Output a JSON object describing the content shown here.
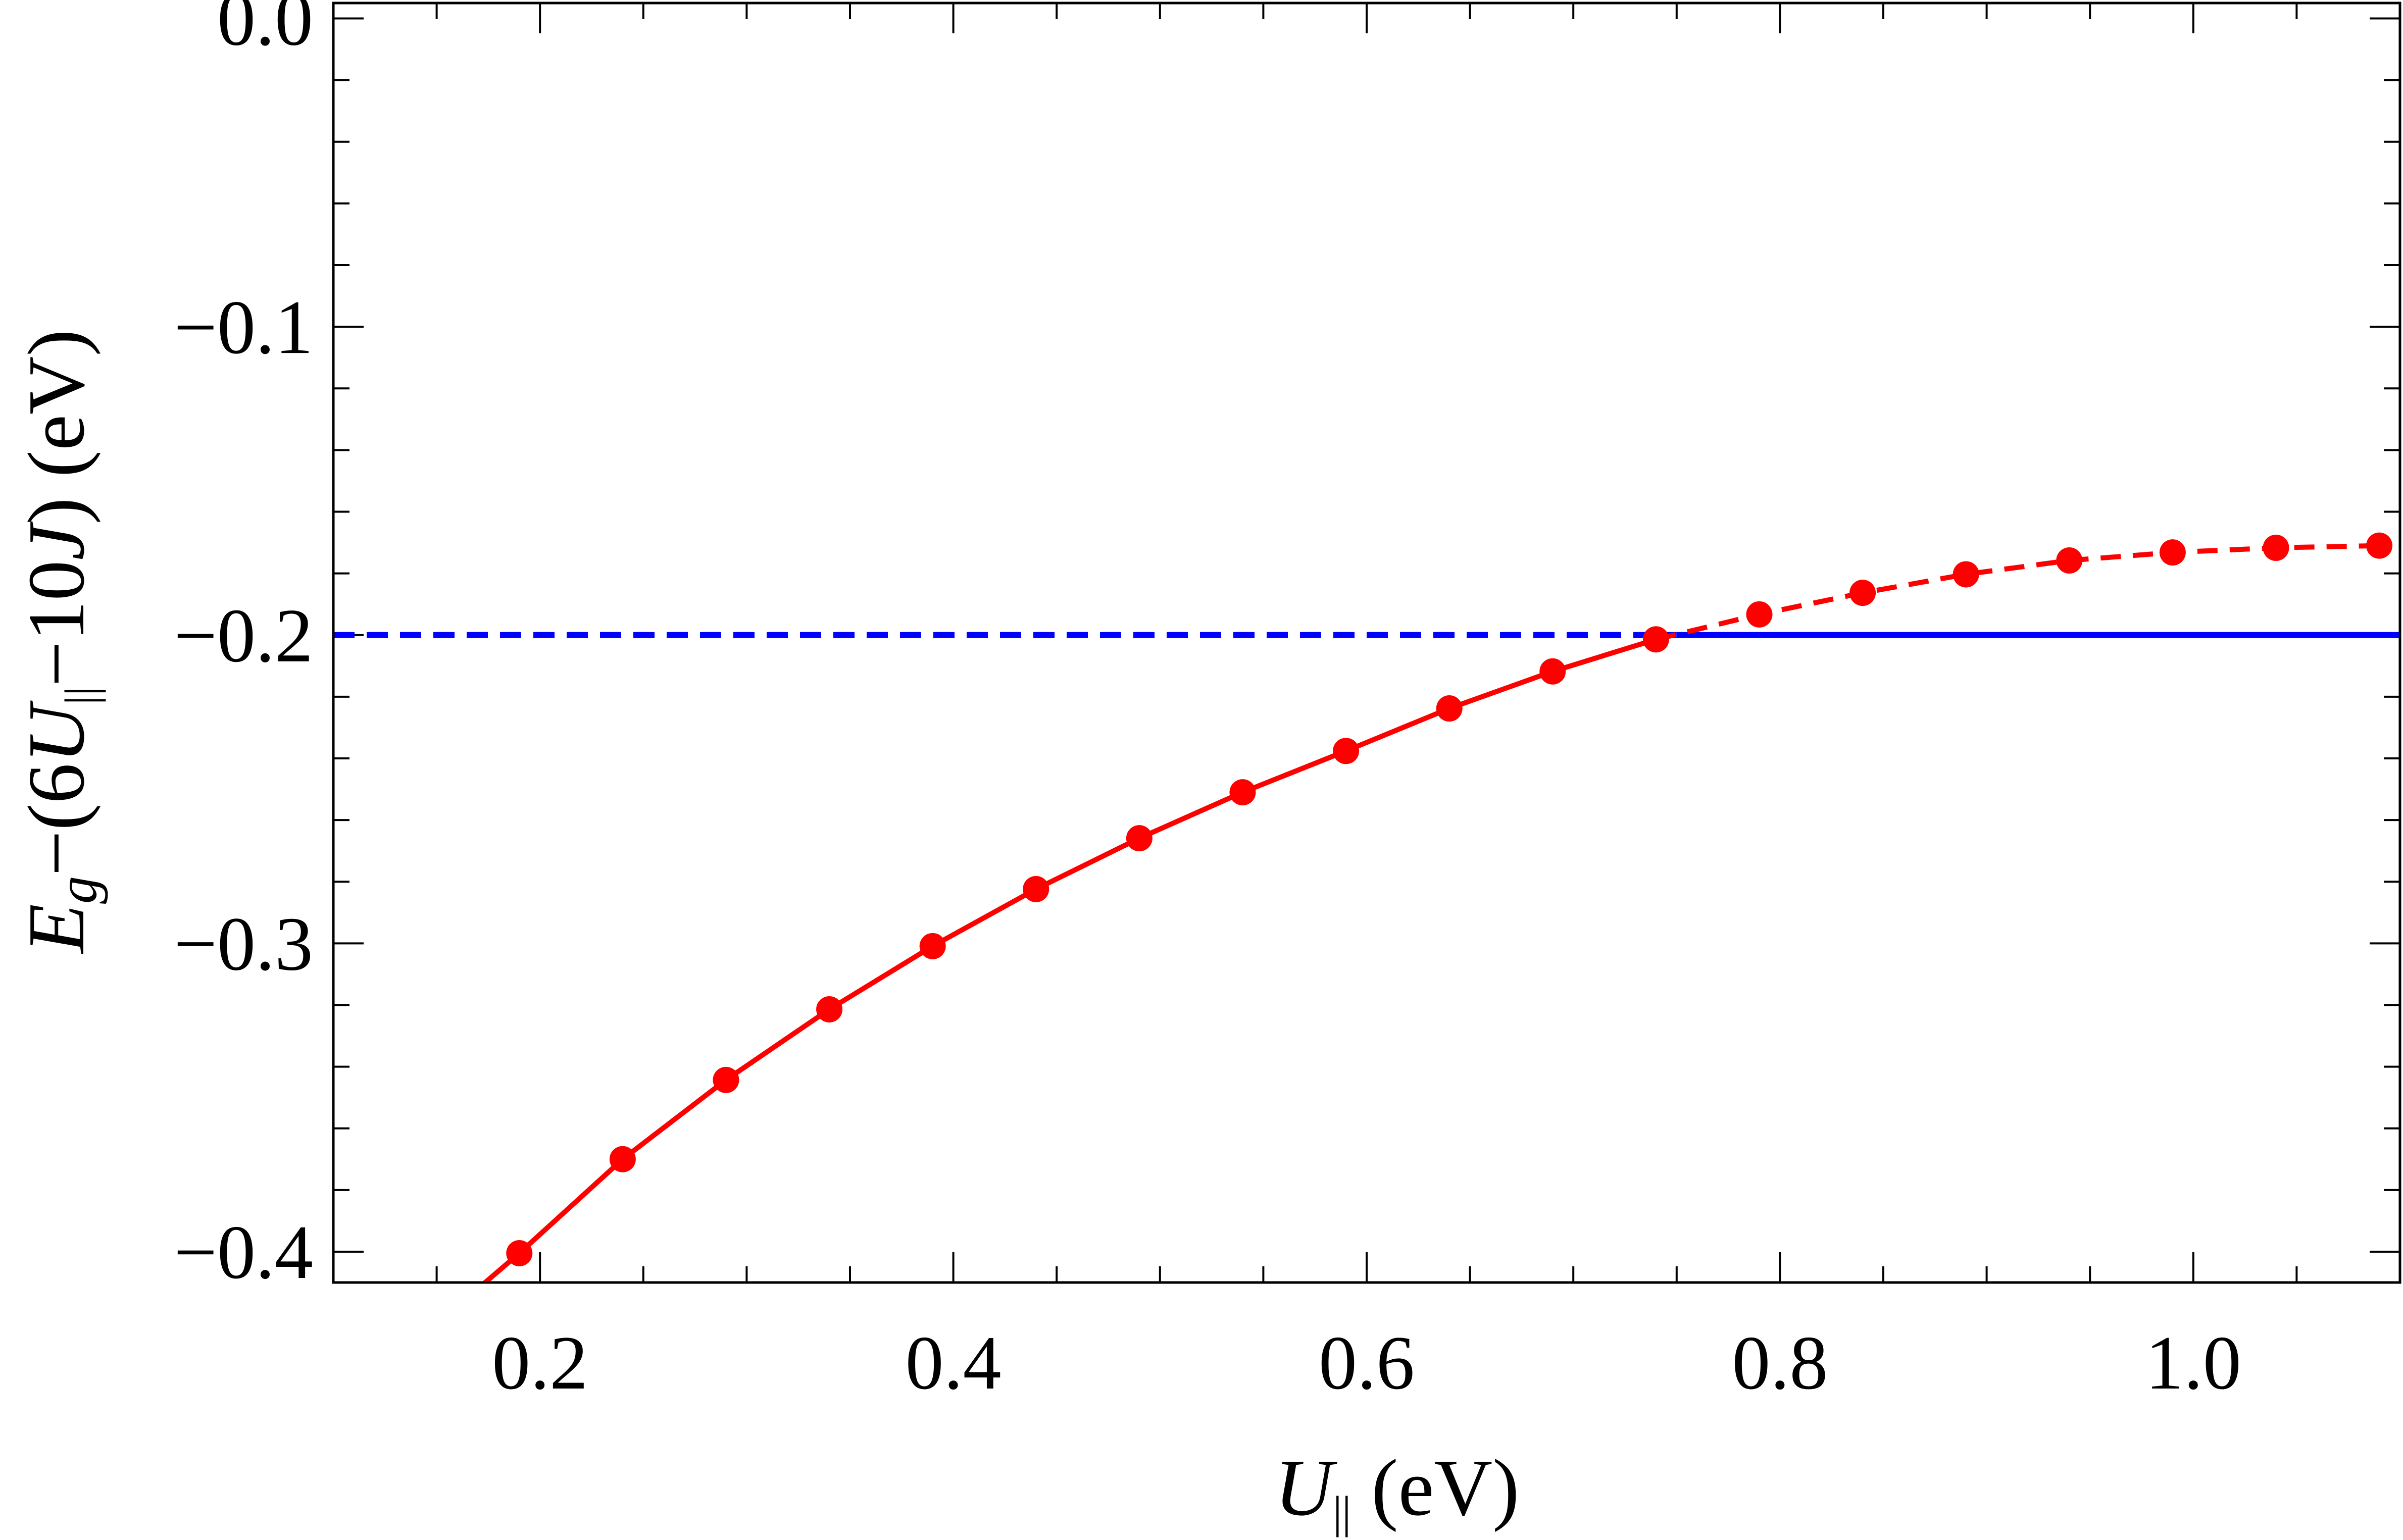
{
  "chart_data": {
    "type": "line",
    "title": "",
    "xlabel": {
      "var": "U",
      "sub": "||",
      "unit": " (eV)"
    },
    "ylabel": {
      "e": "E",
      "g": "g",
      "mid": "−(6",
      "u": "U",
      "sub": "||",
      "minus10": "−10",
      "j": "J",
      "close": ")",
      "unit": " (eV)"
    },
    "xlim": [
      0.1,
      1.1
    ],
    "ylim": [
      -0.41,
      0.005
    ],
    "x_ticks": [
      0.2,
      0.4,
      0.6,
      0.8,
      1.0
    ],
    "x_tick_labels": [
      "0.2",
      "0.4",
      "0.6",
      "0.8",
      "1.0"
    ],
    "y_ticks": [
      0.0,
      -0.1,
      -0.2,
      -0.3,
      -0.4
    ],
    "y_tick_labels": [
      "0.0",
      "−0.1",
      "−0.2",
      "−0.3",
      "−0.4"
    ],
    "grid": false,
    "series": [
      {
        "color": "#ff0000",
        "style": "points-with-line",
        "solid_until_x": 0.74,
        "dashed_after": true,
        "x": [
          0.19,
          0.24,
          0.29,
          0.34,
          0.39,
          0.44,
          0.49,
          0.54,
          0.59,
          0.64,
          0.69,
          0.74,
          0.79,
          0.84,
          0.89,
          0.94,
          0.99,
          1.04,
          1.09
        ],
        "y": [
          -0.4005,
          -0.37,
          -0.3443,
          -0.3214,
          -0.3009,
          -0.2824,
          -0.2659,
          -0.251,
          -0.2376,
          -0.2238,
          -0.2118,
          -0.2014,
          -0.1933,
          -0.1863,
          -0.1803,
          -0.1758,
          -0.1732,
          -0.1717,
          -0.171
        ],
        "curve_start": [
          0.17,
          -0.412
        ]
      },
      {
        "color": "#0000ff",
        "style": "horizontal-line",
        "y": -0.2,
        "dashed_until_x": 0.75,
        "solid_after": true
      }
    ]
  }
}
